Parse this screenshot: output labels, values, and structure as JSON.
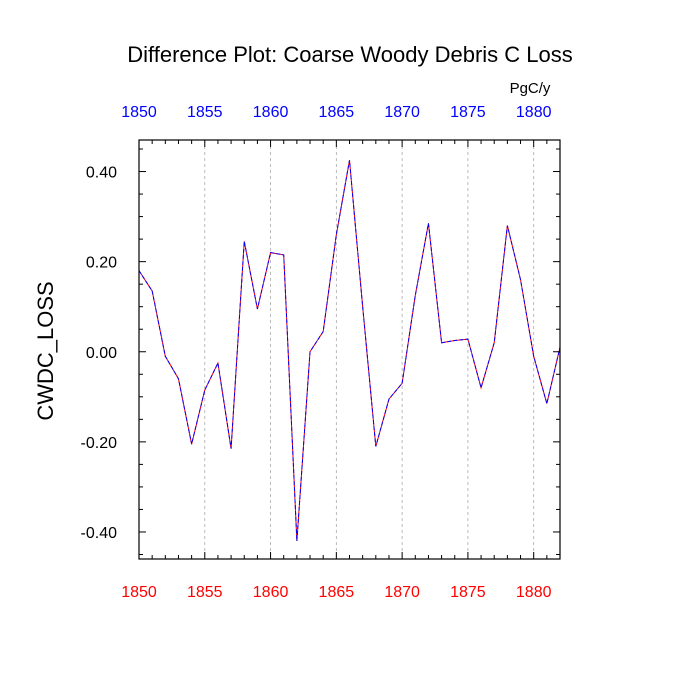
{
  "chart_data": {
    "type": "line",
    "title": "Difference Plot: Coarse Woody Debris C Loss",
    "ylabel": "CWDC_LOSS",
    "units": "PgC/y",
    "xlim": [
      1850,
      1882
    ],
    "ylim": [
      -0.46,
      0.47
    ],
    "x_ticks": [
      1850,
      1855,
      1860,
      1865,
      1870,
      1875,
      1880
    ],
    "x_tick_labels": [
      "1850",
      "1855",
      "1860",
      "1865",
      "1870",
      "1875",
      "1880"
    ],
    "y_ticks": [
      -0.4,
      -0.2,
      0.0,
      0.2,
      0.4
    ],
    "y_tick_labels": [
      "-0.40",
      "-0.20",
      "0.00",
      "0.20",
      "0.40"
    ],
    "grid": "vertical dashed at major x ticks",
    "colors": {
      "top_axis_labels": "#0000ff",
      "bottom_axis_labels": "#ff0000",
      "series_a": "#ff0000",
      "series_b": "#0000ff",
      "grid": "#aaaaaa"
    },
    "series": [
      {
        "name": "difference",
        "x": [
          1850,
          1851,
          1852,
          1853,
          1854,
          1855,
          1856,
          1857,
          1858,
          1859,
          1860,
          1861,
          1862,
          1863,
          1864,
          1865,
          1866,
          1867,
          1868,
          1869,
          1870,
          1871,
          1872,
          1873,
          1874,
          1875,
          1876,
          1877,
          1878,
          1879,
          1880,
          1881,
          1882
        ],
        "values": [
          0.18,
          0.135,
          -0.01,
          -0.06,
          -0.205,
          -0.085,
          -0.025,
          -0.215,
          0.245,
          0.095,
          0.22,
          0.215,
          -0.42,
          0.0,
          0.045,
          0.26,
          0.425,
          0.1,
          -0.21,
          -0.105,
          -0.07,
          0.125,
          0.285,
          0.02,
          0.025,
          0.028,
          -0.08,
          0.02,
          0.28,
          0.16,
          -0.01,
          -0.115,
          0.01
        ]
      }
    ]
  }
}
